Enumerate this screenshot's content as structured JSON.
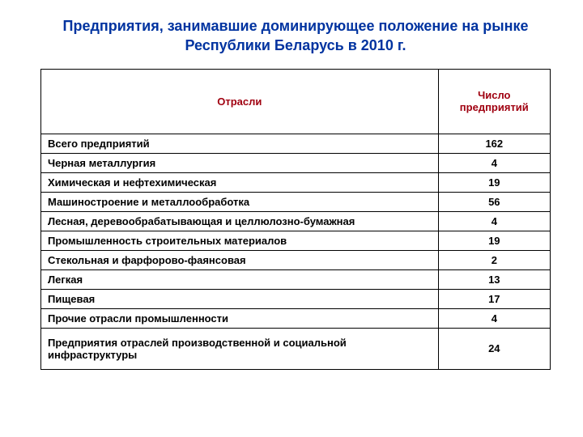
{
  "title": "Предприятия, занимавшие доминирующее положение на рынке Республики Беларусь в 2010 г.",
  "table": {
    "columns": [
      "Отрасли",
      "Число предприятий"
    ],
    "rows": [
      {
        "industry": "Всего предприятий",
        "count": "162",
        "tall": false
      },
      {
        "industry": "Черная металлургия",
        "count": "4",
        "tall": false
      },
      {
        "industry": "Химическая и нефтехимическая",
        "count": "19",
        "tall": false
      },
      {
        "industry": "Машиностроение и металлообработка",
        "count": "56",
        "tall": false
      },
      {
        "industry": "Лесная, деревообрабатывающая и целлюлозно-бумажная",
        "count": "4",
        "tall": false
      },
      {
        "industry": "Промышленность строительных материалов",
        "count": "19",
        "tall": false
      },
      {
        "industry": "Стекольная и фарфорово-фаянсовая",
        "count": "2",
        "tall": false
      },
      {
        "industry": "Легкая",
        "count": "13",
        "tall": false
      },
      {
        "industry": "Пищевая",
        "count": "17",
        "tall": false
      },
      {
        "industry": "Прочие отрасли промышленности",
        "count": "4",
        "tall": false
      },
      {
        "industry": "Предприятия отраслей производственной и социальной инфраструктуры",
        "count": "24",
        "tall": true
      }
    ]
  },
  "styling": {
    "title_color": "#0033a0",
    "header_color": "#a00010",
    "border_color": "#000000",
    "background_color": "#ffffff",
    "title_fontsize": 18,
    "cell_fontsize": 13
  }
}
